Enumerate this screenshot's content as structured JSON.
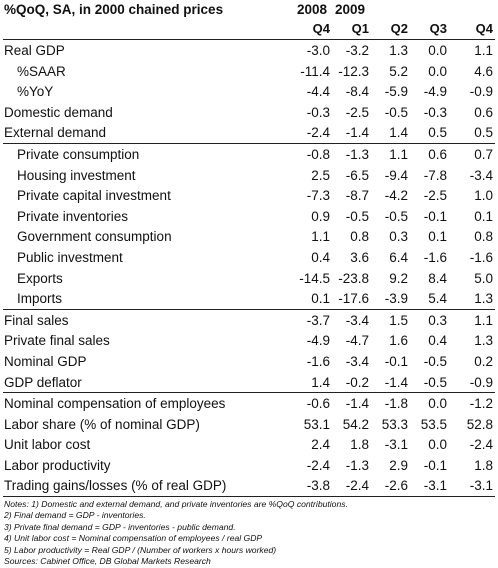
{
  "header": {
    "title": "%QoQ, SA, in 2000 chained prices",
    "year_2008": "2008",
    "year_2009": "2009",
    "quarters": [
      "Q4",
      "Q1",
      "Q2",
      "Q3",
      "Q4"
    ]
  },
  "groups": [
    {
      "indent": false,
      "rows": [
        {
          "label": "Real GDP",
          "values": [
            "-3.0",
            "-3.2",
            "1.3",
            "0.0",
            "1.1"
          ]
        },
        {
          "label": "%SAAR",
          "indent": true,
          "values": [
            "-11.4",
            "-12.3",
            "5.2",
            "0.0",
            "4.6"
          ]
        },
        {
          "label": "%YoY",
          "indent": true,
          "values": [
            "-4.4",
            "-8.4",
            "-5.9",
            "-4.9",
            "-0.9"
          ]
        },
        {
          "label": "Domestic demand",
          "values": [
            "-0.3",
            "-2.5",
            "-0.5",
            "-0.3",
            "0.6"
          ]
        },
        {
          "label": "External demand",
          "values": [
            "-2.4",
            "-1.4",
            "1.4",
            "0.5",
            "0.5"
          ]
        }
      ]
    },
    {
      "indent": true,
      "rows": [
        {
          "label": "Private consumption",
          "values": [
            "-0.8",
            "-1.3",
            "1.1",
            "0.6",
            "0.7"
          ]
        },
        {
          "label": "Housing investment",
          "values": [
            "2.5",
            "-6.5",
            "-9.4",
            "-7.8",
            "-3.4"
          ]
        },
        {
          "label": "Private capital investment",
          "values": [
            "-7.3",
            "-8.7",
            "-4.2",
            "-2.5",
            "1.0"
          ]
        },
        {
          "label": "Private inventories",
          "values": [
            "0.9",
            "-0.5",
            "-0.5",
            "-0.1",
            "0.1"
          ]
        },
        {
          "label": "Government consumption",
          "values": [
            "1.1",
            "0.8",
            "0.3",
            "0.1",
            "0.8"
          ]
        },
        {
          "label": "Public investment",
          "values": [
            "0.4",
            "3.6",
            "6.4",
            "-1.6",
            "-1.6"
          ]
        },
        {
          "label": "Exports",
          "values": [
            "-14.5",
            "-23.8",
            "9.2",
            "8.4",
            "5.0"
          ]
        },
        {
          "label": "Imports",
          "values": [
            "0.1",
            "-17.6",
            "-3.9",
            "5.4",
            "1.3"
          ]
        }
      ]
    },
    {
      "indent": false,
      "rows": [
        {
          "label": "Final sales",
          "values": [
            "-3.7",
            "-3.4",
            "1.5",
            "0.3",
            "1.1"
          ]
        },
        {
          "label": "Private final sales",
          "values": [
            "-4.9",
            "-4.7",
            "1.6",
            "0.4",
            "1.3"
          ]
        },
        {
          "label": "Nominal GDP",
          "values": [
            "-1.6",
            "-3.4",
            "-0.1",
            "-0.5",
            "0.2"
          ]
        },
        {
          "label": "GDP deflator",
          "values": [
            "1.4",
            "-0.2",
            "-1.4",
            "-0.5",
            "-0.9"
          ]
        }
      ]
    },
    {
      "indent": false,
      "rows": [
        {
          "label": "Nominal compensation of employees",
          "values": [
            "-0.6",
            "-1.4",
            "-1.8",
            "0.0",
            "-1.2"
          ]
        },
        {
          "label": "Labor share (% of nominal GDP)",
          "values": [
            "53.1",
            "54.2",
            "53.3",
            "53.5",
            "52.8"
          ]
        },
        {
          "label": "Unit labor cost",
          "values": [
            "2.4",
            "1.8",
            "-3.1",
            "0.0",
            "-2.4"
          ]
        },
        {
          "label": "Labor productivity",
          "values": [
            "-2.4",
            "-1.3",
            "2.9",
            "-0.1",
            "1.8"
          ]
        },
        {
          "label": "Trading gains/losses (% of real GDP)",
          "values": [
            "-3.8",
            "-2.4",
            "-2.6",
            "-3.1",
            "-3.1"
          ]
        }
      ]
    }
  ],
  "notes": [
    "Notes: 1) Domestic and external demand, and private inventories are %QoQ contributions.",
    "2) Final demand = GDP - inventories.",
    "3) Private final demand = GDP - inventories - public demand.",
    "4) Unit labor cost = Nominal compensation of employees / real GDP",
    "5) Labor productivity = Real GDP / (Number of workers x hours worked)"
  ],
  "source": "Sources: Cabinet Office, DB Global Markets Research"
}
